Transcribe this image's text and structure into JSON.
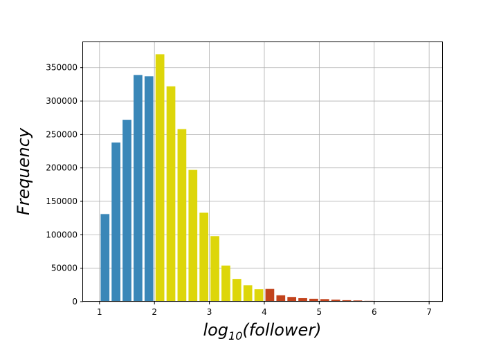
{
  "chart_data": {
    "type": "bar",
    "xlabel": "log10(follower)",
    "xlabel_base": "log",
    "xlabel_sub": "10",
    "xlabel_tail": "(follower)",
    "ylabel": "Frequency",
    "xlim": [
      0.7,
      7.25
    ],
    "ylim": [
      0,
      388000
    ],
    "grid": true,
    "x_ticks": [
      1,
      2,
      3,
      4,
      5,
      6,
      7
    ],
    "y_ticks": [
      0,
      50000,
      100000,
      150000,
      200000,
      250000,
      300000,
      350000
    ],
    "bar_width": 0.16,
    "series": [
      {
        "color": "#3a87b8",
        "x": [
          1.1,
          1.3,
          1.5,
          1.7,
          1.9
        ],
        "values": [
          131000,
          238000,
          272000,
          339000,
          337000
        ]
      },
      {
        "color": "#ddd60a",
        "x": [
          2.1,
          2.3,
          2.5,
          2.7,
          2.9,
          3.1,
          3.3,
          3.5,
          3.7,
          3.9
        ],
        "values": [
          370000,
          322000,
          258000,
          197000,
          133000,
          98000,
          54000,
          34000,
          24500,
          18500
        ]
      },
      {
        "color": "#c2431c",
        "x": [
          4.1,
          4.3,
          4.5,
          4.7,
          4.9,
          5.1,
          5.3,
          5.5,
          5.7,
          5.9,
          6.1,
          6.3,
          6.5,
          6.7
        ],
        "values": [
          19000,
          9500,
          7000,
          5200,
          4300,
          3800,
          3000,
          2200,
          1800,
          1200,
          900,
          600,
          400,
          200
        ]
      }
    ]
  }
}
